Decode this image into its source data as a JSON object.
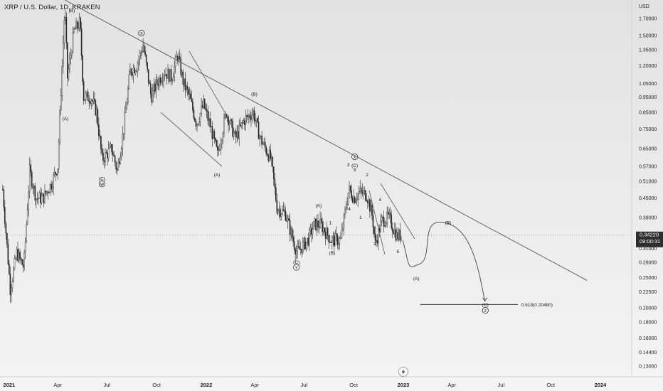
{
  "header": {
    "symbol_title": "XRP / U.S. Dollar, 1D, KRAKEN"
  },
  "price_axis": {
    "currency": "USD",
    "ticks": [
      "1.70000",
      "1.50000",
      "1.35000",
      "1.20000",
      "1.05000",
      "0.95000",
      "0.85000",
      "0.75000",
      "0.65000",
      "0.57000",
      "0.51000",
      "0.45000",
      "0.39000",
      "0.31000",
      "0.28000",
      "0.25000",
      "0.22500",
      "0.20000",
      "0.18000",
      "0.16000",
      "0.14400",
      "0.13000"
    ],
    "tick_values": [
      1.7,
      1.5,
      1.35,
      1.2,
      1.05,
      0.95,
      0.85,
      0.75,
      0.65,
      0.57,
      0.51,
      0.45,
      0.39,
      0.31,
      0.28,
      0.25,
      0.225,
      0.2,
      0.18,
      0.16,
      0.144,
      0.13
    ],
    "log_scale": true,
    "last_price_label": "0.34220",
    "countdown_label": "09:00:31",
    "last_price_value": 0.3422
  },
  "time_axis": {
    "ticks": [
      "2021",
      "Apr",
      "Jul",
      "Oct",
      "2022",
      "Apr",
      "Jul",
      "Oct",
      "2023",
      "Apr",
      "Jul",
      "Oct",
      "2024"
    ],
    "tick_dates": [
      "2021-01-01",
      "2021-04-01",
      "2021-07-01",
      "2021-10-01",
      "2022-01-01",
      "2022-04-01",
      "2022-07-01",
      "2022-10-01",
      "2023-01-01",
      "2023-04-01",
      "2023-07-01",
      "2023-10-01",
      "2024-01-01"
    ]
  },
  "chart_data": {
    "type": "line",
    "title": "XRP / U.S. Dollar, 1D, KRAKEN",
    "ylabel": "USD",
    "y_scale": "log",
    "ylim": [
      0.12,
      1.95
    ],
    "xlim": [
      "2020-12-15",
      "2024-02-28"
    ],
    "grid": false,
    "series": [
      {
        "values": [
          [
            "2020-12-20",
            0.48
          ],
          [
            "2021-01-03",
            0.23
          ],
          [
            "2021-01-15",
            0.3
          ],
          [
            "2021-01-28",
            0.27
          ],
          [
            "2021-02-08",
            0.55
          ],
          [
            "2021-02-20",
            0.45
          ],
          [
            "2021-03-05",
            0.45
          ],
          [
            "2021-03-20",
            0.5
          ],
          [
            "2021-04-01",
            0.57
          ],
          [
            "2021-04-07",
            1.0
          ],
          [
            "2021-04-14",
            1.85
          ],
          [
            "2021-04-19",
            1.1
          ],
          [
            "2021-05-01",
            1.55
          ],
          [
            "2021-05-12",
            1.65
          ],
          [
            "2021-05-19",
            0.95
          ],
          [
            "2021-06-01",
            0.95
          ],
          [
            "2021-06-12",
            0.85
          ],
          [
            "2021-06-22",
            0.6
          ],
          [
            "2021-07-10",
            0.65
          ],
          [
            "2021-07-20",
            0.55
          ],
          [
            "2021-08-01",
            0.75
          ],
          [
            "2021-08-13",
            1.15
          ],
          [
            "2021-08-25",
            1.2
          ],
          [
            "2021-09-06",
            1.4
          ],
          [
            "2021-09-21",
            0.95
          ],
          [
            "2021-10-01",
            1.05
          ],
          [
            "2021-10-15",
            1.15
          ],
          [
            "2021-10-29",
            1.1
          ],
          [
            "2021-11-09",
            1.3
          ],
          [
            "2021-11-20",
            1.05
          ],
          [
            "2021-12-01",
            0.95
          ],
          [
            "2021-12-14",
            0.78
          ],
          [
            "2021-12-27",
            0.9
          ],
          [
            "2022-01-10",
            0.75
          ],
          [
            "2022-01-22",
            0.62
          ],
          [
            "2022-02-07",
            0.85
          ],
          [
            "2022-02-24",
            0.7
          ],
          [
            "2022-03-12",
            0.8
          ],
          [
            "2022-03-29",
            0.85
          ],
          [
            "2022-04-11",
            0.7
          ],
          [
            "2022-05-01",
            0.6
          ],
          [
            "2022-05-12",
            0.42
          ],
          [
            "2022-05-28",
            0.4
          ],
          [
            "2022-06-13",
            0.32
          ],
          [
            "2022-06-18",
            0.3
          ],
          [
            "2022-07-08",
            0.33
          ],
          [
            "2022-07-20",
            0.37
          ],
          [
            "2022-08-01",
            0.37
          ],
          [
            "2022-08-20",
            0.33
          ],
          [
            "2022-09-07",
            0.33
          ],
          [
            "2022-09-22",
            0.48
          ],
          [
            "2022-10-02",
            0.45
          ],
          [
            "2022-10-12",
            0.47
          ],
          [
            "2022-10-26",
            0.46
          ],
          [
            "2022-11-05",
            0.39
          ],
          [
            "2022-11-10",
            0.32
          ],
          [
            "2022-11-22",
            0.38
          ],
          [
            "2022-12-05",
            0.39
          ],
          [
            "2022-12-20",
            0.34
          ],
          [
            "2022-12-28",
            0.3422
          ]
        ]
      }
    ],
    "annotations": {
      "trendline": {
        "from": [
          "2021-04-14",
          1.95
        ],
        "to": [
          "2023-12-07",
          0.245
        ]
      },
      "fib_level": {
        "label": "0.618(0.20480)",
        "value": 0.2048,
        "from": "2023-02-01",
        "to": "2023-08-01"
      },
      "projection": {
        "points": [
          [
            "2022-12-31",
            0.33
          ],
          [
            "2023-01-28",
            0.275
          ],
          [
            "2023-03-20",
            0.375
          ],
          [
            "2023-06-01",
            0.21
          ]
        ]
      },
      "wave_labels": [
        {
          "text": "(B)",
          "x": "2021-04-27",
          "y": 1.8
        },
        {
          "text": "(A)",
          "x": "2021-04-15",
          "y": 0.81
        },
        {
          "text": "(C)",
          "x": "2021-06-22",
          "y": 0.52
        },
        {
          "text": "W",
          "x": "2021-06-22",
          "y": 0.495,
          "circled": true
        },
        {
          "text": "X",
          "x": "2021-09-03",
          "y": 1.51,
          "circled": true
        },
        {
          "text": "(A)",
          "x": "2022-01-21",
          "y": 0.535
        },
        {
          "text": "(B)",
          "x": "2022-03-31",
          "y": 0.97
        },
        {
          "text": "(C)",
          "x": "2022-06-17",
          "y": 0.28
        },
        {
          "text": "Y",
          "x": "2022-06-17",
          "y": 0.267,
          "circled": true
        },
        {
          "text": "(A)",
          "x": "2022-07-28",
          "y": 0.425
        },
        {
          "text": "1",
          "x": "2022-08-19",
          "y": 0.375
        },
        {
          "text": "(B)",
          "x": "2022-08-22",
          "y": 0.3
        },
        {
          "text": "2",
          "x": "2022-08-26",
          "y": 0.318
        },
        {
          "text": "3",
          "x": "2022-09-21",
          "y": 0.575
        },
        {
          "text": "4",
          "x": "2022-09-23",
          "y": 0.415
        },
        {
          "text": "X",
          "x": "2022-10-03",
          "y": 0.605,
          "circled": true
        },
        {
          "text": "(C)",
          "x": "2022-10-03",
          "y": 0.573
        },
        {
          "text": "5",
          "x": "2022-10-03",
          "y": 0.555
        },
        {
          "text": "1",
          "x": "2022-10-14",
          "y": 0.39
        },
        {
          "text": "2",
          "x": "2022-10-26",
          "y": 0.535
        },
        {
          "text": "3",
          "x": "2022-11-09",
          "y": 0.322
        },
        {
          "text": "4",
          "x": "2022-11-19",
          "y": 0.445
        },
        {
          "text": "5",
          "x": "2022-12-22",
          "y": 0.303
        },
        {
          "text": "(A)",
          "x": "2023-01-25",
          "y": 0.248
        },
        {
          "text": "(B)",
          "x": "2023-03-25",
          "y": 0.375
        },
        {
          "text": "(C)",
          "x": "2023-06-02",
          "y": 0.204
        },
        {
          "text": "Z",
          "x": "2023-06-02",
          "y": 0.194,
          "circled": true
        }
      ]
    }
  },
  "colors": {
    "background_top": "#e2e2e2",
    "background_bottom": "#f4f4f4",
    "candle": "#262626",
    "trendline": "#555555",
    "price_label_bg": "#2e2e2e",
    "axis_text": "#222222"
  },
  "icons": {
    "scroll_button": "lightning-bolt-icon"
  }
}
